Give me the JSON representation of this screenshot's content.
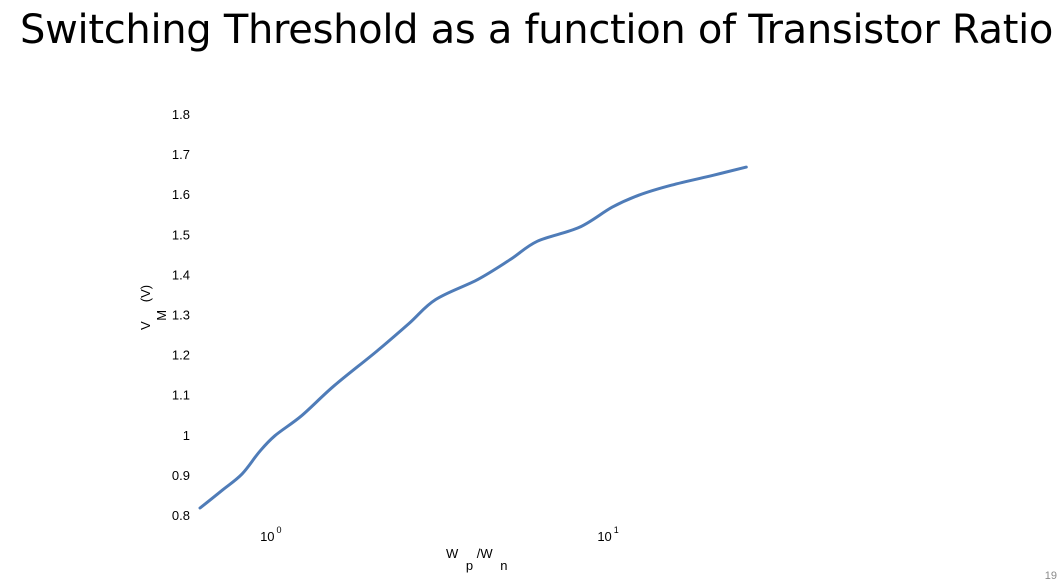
{
  "slide": {
    "title": "Switching Threshold as a function of Transistor Ratio",
    "page_number": "19"
  },
  "chart_data": {
    "type": "line",
    "title": "",
    "xscale": "log",
    "xlabel": {
      "main": "W",
      "sub1": "p",
      "mid": "/W",
      "sub2": "n"
    },
    "ylabel": {
      "main": "V",
      "sub": "M",
      "unit": "(V)"
    },
    "xlim": [
      0.6,
      26
    ],
    "ylim": [
      0.8,
      1.8
    ],
    "x_ticks": [
      {
        "value": 1,
        "base": "10",
        "exp": "0"
      },
      {
        "value": 10,
        "base": "10",
        "exp": "1"
      }
    ],
    "y_ticks": [
      {
        "value": 0.8,
        "label": "0.8"
      },
      {
        "value": 0.9,
        "label": "0.9"
      },
      {
        "value": 1.0,
        "label": "1"
      },
      {
        "value": 1.1,
        "label": "1.1"
      },
      {
        "value": 1.2,
        "label": "1.2"
      },
      {
        "value": 1.3,
        "label": "1.3"
      },
      {
        "value": 1.4,
        "label": "1.4"
      },
      {
        "value": 1.5,
        "label": "1.5"
      },
      {
        "value": 1.6,
        "label": "1.6"
      },
      {
        "value": 1.7,
        "label": "1.7"
      },
      {
        "value": 1.8,
        "label": "1.8"
      }
    ],
    "grid": false,
    "series": [
      {
        "name": "VM",
        "color": "#4f7cb8",
        "x": [
          0.6,
          0.7,
          0.8,
          0.9,
          1.0,
          1.2,
          1.5,
          2.0,
          2.5,
          3.0,
          4.0,
          5.0,
          6.0,
          8.0,
          10.0,
          12.0,
          15.0,
          20.0,
          25.0
        ],
        "y": [
          0.82,
          0.865,
          0.905,
          0.96,
          1.0,
          1.05,
          1.125,
          1.21,
          1.28,
          1.34,
          1.39,
          1.44,
          1.485,
          1.52,
          1.57,
          1.6,
          1.625,
          1.65,
          1.67
        ]
      }
    ]
  }
}
